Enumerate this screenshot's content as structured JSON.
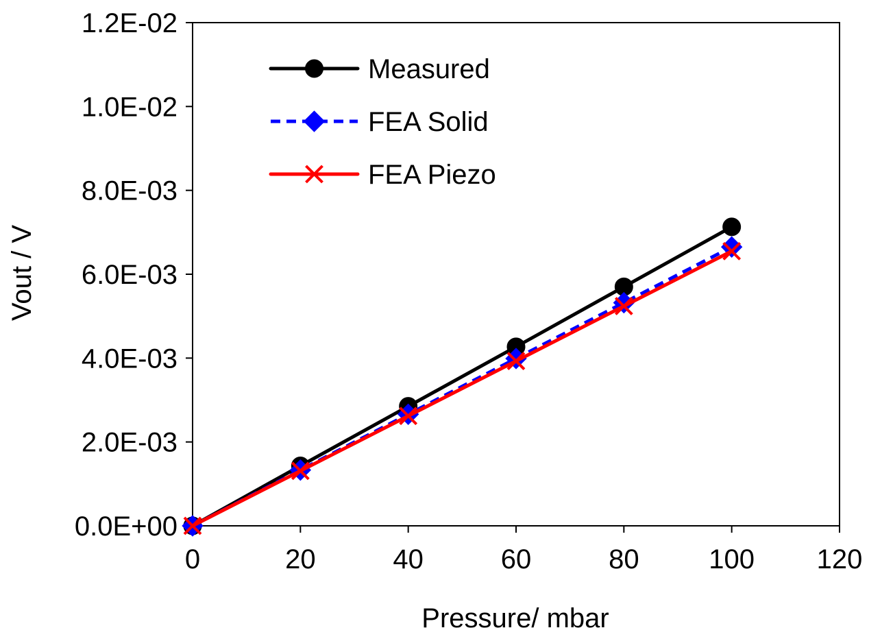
{
  "chart_data": {
    "type": "line",
    "title": "",
    "xlabel": "Pressure/ mbar",
    "ylabel": "Vout  / V",
    "xlim": [
      0,
      120
    ],
    "ylim": [
      0,
      0.012
    ],
    "x_ticks": [
      0,
      20,
      40,
      60,
      80,
      100,
      120
    ],
    "x_tick_labels": [
      "0",
      "20",
      "40",
      "60",
      "80",
      "100",
      "120"
    ],
    "y_ticks": [
      0,
      0.002,
      0.004,
      0.006,
      0.008,
      0.01,
      0.012
    ],
    "y_tick_labels": [
      "0.0E+00",
      "2.0E-03",
      "4.0E-03",
      "6.0E-03",
      "8.0E-03",
      "1.0E-02",
      "1.2E-02"
    ],
    "grid": false,
    "legend_position": "top-left",
    "x": [
      0,
      20,
      40,
      60,
      80,
      100
    ],
    "series": [
      {
        "name": "Measured",
        "values": [
          0,
          0.00143,
          0.00285,
          0.00427,
          0.0057,
          0.00713
        ],
        "color": "#000000",
        "marker": "circle",
        "line_style": "solid"
      },
      {
        "name": "FEA Solid",
        "values": [
          0,
          0.00133,
          0.00266,
          0.00399,
          0.00532,
          0.00665
        ],
        "color": "#0000ff",
        "marker": "diamond",
        "line_style": "dashed"
      },
      {
        "name": "FEA Piezo",
        "values": [
          0,
          0.00131,
          0.00262,
          0.00393,
          0.00524,
          0.00655
        ],
        "color": "#ff0000",
        "marker": "x",
        "line_style": "solid"
      }
    ]
  }
}
